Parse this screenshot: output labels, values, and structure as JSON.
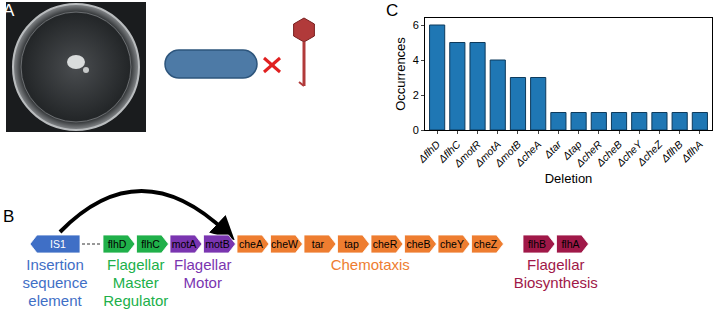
{
  "chart_data": {
    "type": "bar",
    "categories": [
      "ΔflhD",
      "ΔflhC",
      "ΔmotR",
      "ΔmotA",
      "ΔmotB",
      "ΔcheA",
      "Δtar",
      "Δtap",
      "ΔcheR",
      "ΔcheB",
      "ΔcheY",
      "ΔcheZ",
      "ΔflhB",
      "ΔflhA"
    ],
    "values": [
      6,
      5,
      5,
      4,
      3,
      3,
      1,
      1,
      1,
      1,
      1,
      1,
      1,
      1
    ],
    "color": "#1f77b4",
    "xlabel": "Deletion",
    "ylabel": "Occurrences",
    "ylim": [
      0,
      6.4
    ],
    "yticks": [
      0,
      2,
      4,
      6
    ],
    "grid": false
  },
  "panel_labels": [
    "A",
    "B",
    "C"
  ],
  "gene_diagram": {
    "genes": [
      {
        "name": "IS1",
        "group": 0,
        "direction": "left"
      },
      {
        "name": "flhD",
        "group": 1,
        "direction": "right"
      },
      {
        "name": "flhC",
        "group": 1,
        "direction": "right"
      },
      {
        "name": "motA",
        "group": 2,
        "direction": "right"
      },
      {
        "name": "motB",
        "group": 2,
        "direction": "right"
      },
      {
        "name": "cheA",
        "group": 3,
        "direction": "right"
      },
      {
        "name": "cheW",
        "group": 3,
        "direction": "right"
      },
      {
        "name": "tar",
        "group": 3,
        "direction": "right"
      },
      {
        "name": "tap",
        "group": 3,
        "direction": "right"
      },
      {
        "name": "cheR",
        "group": 3,
        "direction": "right"
      },
      {
        "name": "cheB",
        "group": 3,
        "direction": "right"
      },
      {
        "name": "cheY",
        "group": 3,
        "direction": "right"
      },
      {
        "name": "cheZ",
        "group": 3,
        "direction": "right"
      },
      {
        "name": "flhB",
        "group": 4,
        "direction": "right"
      },
      {
        "name": "flhA",
        "group": 4,
        "direction": "right"
      }
    ],
    "groups": [
      {
        "lines": [
          "Insertion",
          "sequence",
          "element"
        ],
        "color": "#3f6fc6"
      },
      {
        "lines": [
          "Flagellar",
          "Master",
          "Regulator"
        ],
        "color": "#20b04a"
      },
      {
        "lines": [
          "Flagellar",
          "Motor"
        ],
        "color": "#7a35b0"
      },
      {
        "lines": [
          "Chemotaxis"
        ],
        "color": "#ee7d30"
      },
      {
        "lines": [
          "Flagellar",
          "Biosynthesis"
        ],
        "color": "#a01848"
      }
    ]
  }
}
